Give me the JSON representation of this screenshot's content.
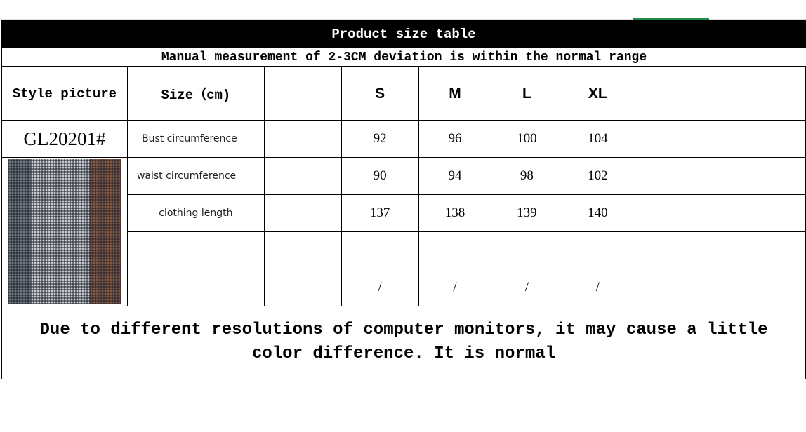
{
  "title": "Product size table",
  "subtitle": "Manual measurement of 2-3CM deviation is within the normal range",
  "header": {
    "style_picture": "Style picture",
    "size_label": "Size（cm)",
    "sizes": [
      "S",
      "M",
      "L",
      "XL"
    ]
  },
  "style_code": "GL20201#",
  "rows": [
    {
      "label": "Bust circumference",
      "values": [
        "92",
        "96",
        "100",
        "104"
      ]
    },
    {
      "label": "waist circumference",
      "values": [
        "90",
        "94",
        "98",
        "102"
      ]
    },
    {
      "label": "clothing length",
      "values": [
        "137",
        "138",
        "139",
        "140"
      ]
    },
    {
      "label": "",
      "values": [
        "",
        "",
        "",
        ""
      ]
    },
    {
      "label": "",
      "values": [
        "/",
        "/",
        "/",
        "/"
      ]
    }
  ],
  "footer": "Due to different resolutions of computer monitors, it may cause a little color difference. It is normal"
}
